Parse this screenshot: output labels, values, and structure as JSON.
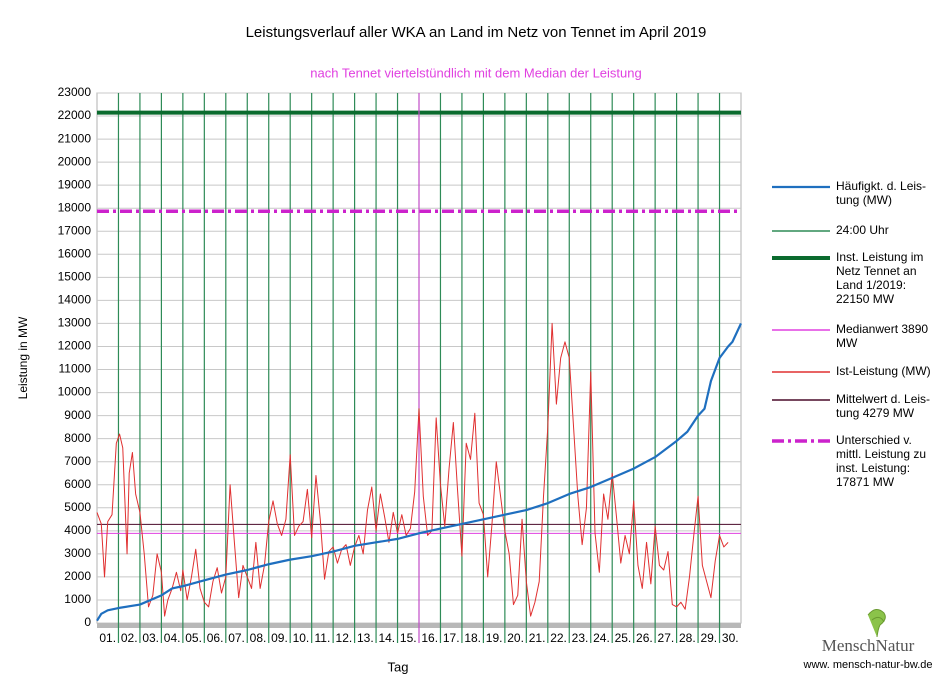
{
  "chart_data": {
    "type": "line",
    "title": "Leistungsverlauf aller WKA an Land im Netz von Tennet im April 2019",
    "subtitle": "nach Tennet viertelstündlich mit dem Median der Leistung",
    "y_label": "Leistung in MW",
    "x_label": "Tag",
    "brand": "MenschNatur",
    "url": "www. mensch-natur-bw.de",
    "xlim": [
      0,
      30
    ],
    "ylim": [
      0,
      23000
    ],
    "yticks": [
      0,
      1000,
      2000,
      3000,
      4000,
      5000,
      6000,
      7000,
      8000,
      9000,
      10000,
      11000,
      12000,
      13000,
      14000,
      15000,
      16000,
      17000,
      18000,
      19000,
      20000,
      21000,
      22000,
      23000
    ],
    "grid": true,
    "categories": [
      "01.",
      "02.",
      "03.",
      "04.",
      "05.",
      "06.",
      "07.",
      "08.",
      "09.",
      "10.",
      "11.",
      "12.",
      "13.",
      "14.",
      "15.",
      "16.",
      "17.",
      "18.",
      "19.",
      "20.",
      "21.",
      "22.",
      "23.",
      "24.",
      "25.",
      "26.",
      "27.",
      "28.",
      "29.",
      "30."
    ],
    "series": [
      {
        "name": [
          "Häufigkt. d. Leis-",
          "tung (MW)"
        ],
        "color": "#1f6fbf",
        "width": 2.2,
        "kind": "line",
        "x": [
          0,
          0.2,
          0.5,
          1,
          2,
          3,
          3.5,
          4,
          5,
          6,
          7,
          8,
          9,
          10,
          11,
          12,
          13,
          14,
          15,
          16,
          17,
          18,
          19,
          20,
          21,
          22,
          23,
          24,
          25,
          26,
          27,
          27.5,
          28,
          28.3,
          28.6,
          29,
          29.4,
          29.6,
          30
        ],
        "values": [
          100,
          400,
          550,
          650,
          800,
          1200,
          1500,
          1600,
          1850,
          2100,
          2300,
          2550,
          2750,
          2900,
          3100,
          3350,
          3500,
          3650,
          3890,
          4100,
          4300,
          4500,
          4700,
          4900,
          5200,
          5600,
          5900,
          6300,
          6700,
          7200,
          7900,
          8300,
          9000,
          9300,
          10500,
          11500,
          12000,
          12200,
          13000
        ]
      },
      {
        "name": [
          "24:00 Uhr"
        ],
        "color": "#2e8b57",
        "width": 1.2,
        "kind": "daylines"
      },
      {
        "name": [
          "Inst. Leistung im",
          "Netz Tennet an",
          "Land 1/2019:",
          "22150  MW"
        ],
        "color": "#0b6b2e",
        "width": 4,
        "kind": "hline",
        "value": 22150
      },
      {
        "name": [
          "Medianwert 3890",
          "MW"
        ],
        "color": "#e040e0",
        "width": 1,
        "kind": "hline",
        "value": 3890,
        "x": 15
      },
      {
        "name": [
          "Ist-Leistung (MW)"
        ],
        "color": "#e03030",
        "width": 1,
        "kind": "line",
        "x": [
          0,
          0.2,
          0.35,
          0.5,
          0.7,
          0.9,
          1.05,
          1.2,
          1.4,
          1.5,
          1.65,
          1.8,
          2.0,
          2.2,
          2.4,
          2.6,
          2.8,
          3.0,
          3.15,
          3.3,
          3.5,
          3.7,
          3.9,
          4.0,
          4.2,
          4.4,
          4.6,
          4.8,
          5.0,
          5.2,
          5.4,
          5.6,
          5.8,
          6.0,
          6.2,
          6.4,
          6.6,
          6.8,
          7.0,
          7.2,
          7.4,
          7.6,
          7.8,
          8.0,
          8.2,
          8.4,
          8.6,
          8.8,
          9.0,
          9.2,
          9.4,
          9.6,
          9.8,
          10.0,
          10.2,
          10.4,
          10.6,
          10.8,
          11.0,
          11.2,
          11.4,
          11.6,
          11.8,
          12.0,
          12.2,
          12.4,
          12.6,
          12.8,
          13.0,
          13.2,
          13.4,
          13.6,
          13.8,
          14.0,
          14.2,
          14.4,
          14.6,
          14.8,
          15.0,
          15.2,
          15.4,
          15.6,
          15.8,
          16.0,
          16.2,
          16.4,
          16.6,
          16.8,
          17.0,
          17.2,
          17.4,
          17.6,
          17.8,
          18.0,
          18.2,
          18.4,
          18.6,
          18.8,
          19.0,
          19.2,
          19.4,
          19.6,
          19.8,
          20.0,
          20.2,
          20.4,
          20.6,
          20.8,
          21.0,
          21.2,
          21.4,
          21.6,
          21.8,
          22.0,
          22.2,
          22.4,
          22.6,
          22.8,
          23.0,
          23.2,
          23.4,
          23.6,
          23.8,
          24.0,
          24.2,
          24.4,
          24.6,
          24.8,
          25.0,
          25.2,
          25.4,
          25.6,
          25.8,
          26.0,
          26.2,
          26.4,
          26.6,
          26.8,
          27.0,
          27.2,
          27.4,
          27.6,
          27.8,
          28.0,
          28.2,
          28.4,
          28.6,
          28.8,
          29.0,
          29.2,
          29.4
        ],
        "values": [
          4800,
          4300,
          2000,
          4400,
          4700,
          7800,
          8200,
          7600,
          3000,
          6500,
          7400,
          5600,
          4800,
          3000,
          700,
          1200,
          3000,
          2200,
          300,
          1000,
          1500,
          2200,
          1400,
          2300,
          1000,
          2000,
          3200,
          1500,
          900,
          700,
          1800,
          2400,
          1300,
          2000,
          6000,
          3500,
          1100,
          2500,
          2000,
          1500,
          3500,
          1500,
          2500,
          4400,
          5300,
          4300,
          3800,
          4500,
          7300,
          3800,
          4200,
          4400,
          5800,
          3700,
          6400,
          4500,
          1900,
          3100,
          3300,
          2600,
          3200,
          3400,
          2500,
          3300,
          3800,
          3000,
          4900,
          5900,
          4000,
          5600,
          4600,
          3500,
          4800,
          3900,
          4700,
          3800,
          4100,
          5700,
          9300,
          5500,
          3800,
          4000,
          8900,
          6000,
          4200,
          6700,
          8700,
          5700,
          2900,
          7800,
          7100,
          9100,
          5200,
          4700,
          2000,
          4300,
          7000,
          5500,
          4000,
          3000,
          800,
          1200,
          4500,
          1800,
          300,
          900,
          1800,
          5500,
          8500,
          13000,
          9500,
          11500,
          12200,
          11500,
          8500,
          5500,
          3400,
          5000,
          10900,
          3900,
          2200,
          5600,
          4500,
          6500,
          4600,
          2600,
          3800,
          3000,
          5300,
          2500,
          1500,
          3500,
          1700,
          4200,
          2500,
          2300,
          3100,
          800,
          700,
          900,
          600,
          2000,
          3800,
          5500,
          2500,
          1800,
          1100,
          2700,
          3800,
          3300,
          3500
        ]
      },
      {
        "name": [
          "Mittelwert d. Leis-",
          "tung 4279 MW"
        ],
        "color": "#4a0a2a",
        "width": 1,
        "kind": "hline",
        "value": 4279
      },
      {
        "name": [
          "Unterschied v.",
          "mittl. Leistung zu",
          "inst. Leistung:",
          "17871 MW"
        ],
        "color": "#cc22cc",
        "width": 3.5,
        "kind": "hline",
        "dash": "12 4 3 4",
        "value": 17871
      }
    ]
  }
}
